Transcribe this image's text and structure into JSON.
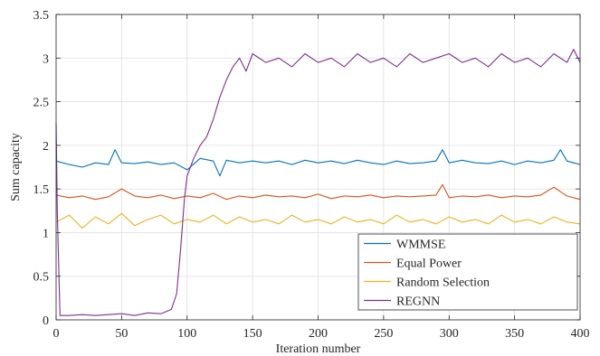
{
  "chart_data": {
    "type": "line",
    "xlabel": "Iteration number",
    "ylabel": "Sum capacity",
    "xlim": [
      0,
      400
    ],
    "ylim": [
      0,
      3.5
    ],
    "xticks": [
      0,
      50,
      100,
      150,
      200,
      250,
      300,
      350,
      400
    ],
    "yticks": [
      0,
      0.5,
      1,
      1.5,
      2,
      2.5,
      3,
      3.5
    ],
    "xtick_labels": [
      "0",
      "50",
      "100",
      "150",
      "200",
      "250",
      "300",
      "350",
      "400"
    ],
    "ytick_labels": [
      "0",
      "0.5",
      "1",
      "1.5",
      "2",
      "2.5",
      "3",
      "3.5"
    ],
    "grid": true,
    "legend_position": "lower-right",
    "series": [
      {
        "name": "WMMSE",
        "color": "#0072BD",
        "x": [
          0,
          10,
          20,
          30,
          40,
          45,
          50,
          60,
          70,
          80,
          90,
          100,
          110,
          120,
          125,
          130,
          140,
          150,
          160,
          170,
          180,
          190,
          200,
          210,
          220,
          230,
          240,
          250,
          260,
          270,
          280,
          290,
          295,
          300,
          310,
          320,
          330,
          340,
          350,
          360,
          370,
          380,
          385,
          390,
          400
        ],
        "y": [
          1.82,
          1.78,
          1.75,
          1.8,
          1.78,
          1.95,
          1.8,
          1.79,
          1.81,
          1.78,
          1.8,
          1.72,
          1.85,
          1.82,
          1.65,
          1.83,
          1.8,
          1.82,
          1.8,
          1.82,
          1.78,
          1.83,
          1.8,
          1.82,
          1.79,
          1.83,
          1.8,
          1.78,
          1.82,
          1.79,
          1.8,
          1.82,
          1.95,
          1.8,
          1.83,
          1.8,
          1.79,
          1.82,
          1.78,
          1.82,
          1.8,
          1.83,
          1.95,
          1.82,
          1.78
        ]
      },
      {
        "name": "Equal Power",
        "color": "#D95319",
        "x": [
          0,
          10,
          20,
          30,
          40,
          50,
          60,
          70,
          80,
          90,
          100,
          110,
          120,
          130,
          140,
          150,
          160,
          170,
          180,
          190,
          200,
          210,
          220,
          230,
          240,
          250,
          260,
          270,
          280,
          290,
          295,
          300,
          310,
          320,
          330,
          340,
          350,
          360,
          370,
          380,
          390,
          400
        ],
        "y": [
          1.43,
          1.4,
          1.42,
          1.38,
          1.41,
          1.5,
          1.42,
          1.4,
          1.43,
          1.39,
          1.42,
          1.4,
          1.45,
          1.38,
          1.42,
          1.4,
          1.43,
          1.41,
          1.42,
          1.4,
          1.44,
          1.39,
          1.42,
          1.41,
          1.43,
          1.4,
          1.42,
          1.41,
          1.42,
          1.43,
          1.55,
          1.4,
          1.42,
          1.41,
          1.43,
          1.4,
          1.42,
          1.41,
          1.43,
          1.52,
          1.42,
          1.38
        ]
      },
      {
        "name": "Random Selection",
        "color": "#EDB120",
        "x": [
          0,
          10,
          20,
          30,
          40,
          50,
          60,
          70,
          80,
          90,
          100,
          110,
          120,
          130,
          140,
          150,
          160,
          170,
          180,
          190,
          200,
          210,
          220,
          230,
          240,
          250,
          260,
          270,
          280,
          290,
          300,
          310,
          320,
          330,
          340,
          350,
          360,
          370,
          380,
          390,
          400
        ],
        "y": [
          1.12,
          1.2,
          1.05,
          1.18,
          1.1,
          1.22,
          1.08,
          1.15,
          1.2,
          1.1,
          1.15,
          1.12,
          1.2,
          1.1,
          1.18,
          1.12,
          1.15,
          1.1,
          1.2,
          1.12,
          1.15,
          1.1,
          1.18,
          1.12,
          1.15,
          1.1,
          1.2,
          1.12,
          1.15,
          1.1,
          1.18,
          1.12,
          1.15,
          1.1,
          1.2,
          1.12,
          1.15,
          1.1,
          1.18,
          1.12,
          1.1
        ]
      },
      {
        "name": "REGNN",
        "color": "#7E2F8E",
        "x": [
          0,
          1,
          3,
          10,
          20,
          30,
          40,
          50,
          60,
          70,
          80,
          88,
          92,
          95,
          98,
          100,
          105,
          110,
          115,
          120,
          125,
          130,
          135,
          140,
          145,
          150,
          160,
          170,
          180,
          190,
          200,
          210,
          220,
          230,
          240,
          250,
          260,
          270,
          280,
          290,
          300,
          310,
          320,
          330,
          340,
          350,
          360,
          370,
          380,
          390,
          395,
          400
        ],
        "y": [
          2.25,
          1.2,
          0.05,
          0.05,
          0.06,
          0.05,
          0.06,
          0.07,
          0.05,
          0.08,
          0.07,
          0.12,
          0.3,
          0.8,
          1.4,
          1.65,
          1.85,
          2.0,
          2.1,
          2.3,
          2.55,
          2.75,
          2.9,
          3.0,
          2.85,
          3.05,
          2.95,
          3.0,
          2.9,
          3.05,
          2.95,
          3.0,
          2.9,
          3.05,
          2.95,
          3.0,
          2.9,
          3.05,
          2.95,
          3.0,
          3.05,
          2.95,
          3.0,
          2.9,
          3.05,
          2.95,
          3.0,
          2.9,
          3.05,
          2.95,
          3.1,
          2.95
        ]
      }
    ]
  }
}
